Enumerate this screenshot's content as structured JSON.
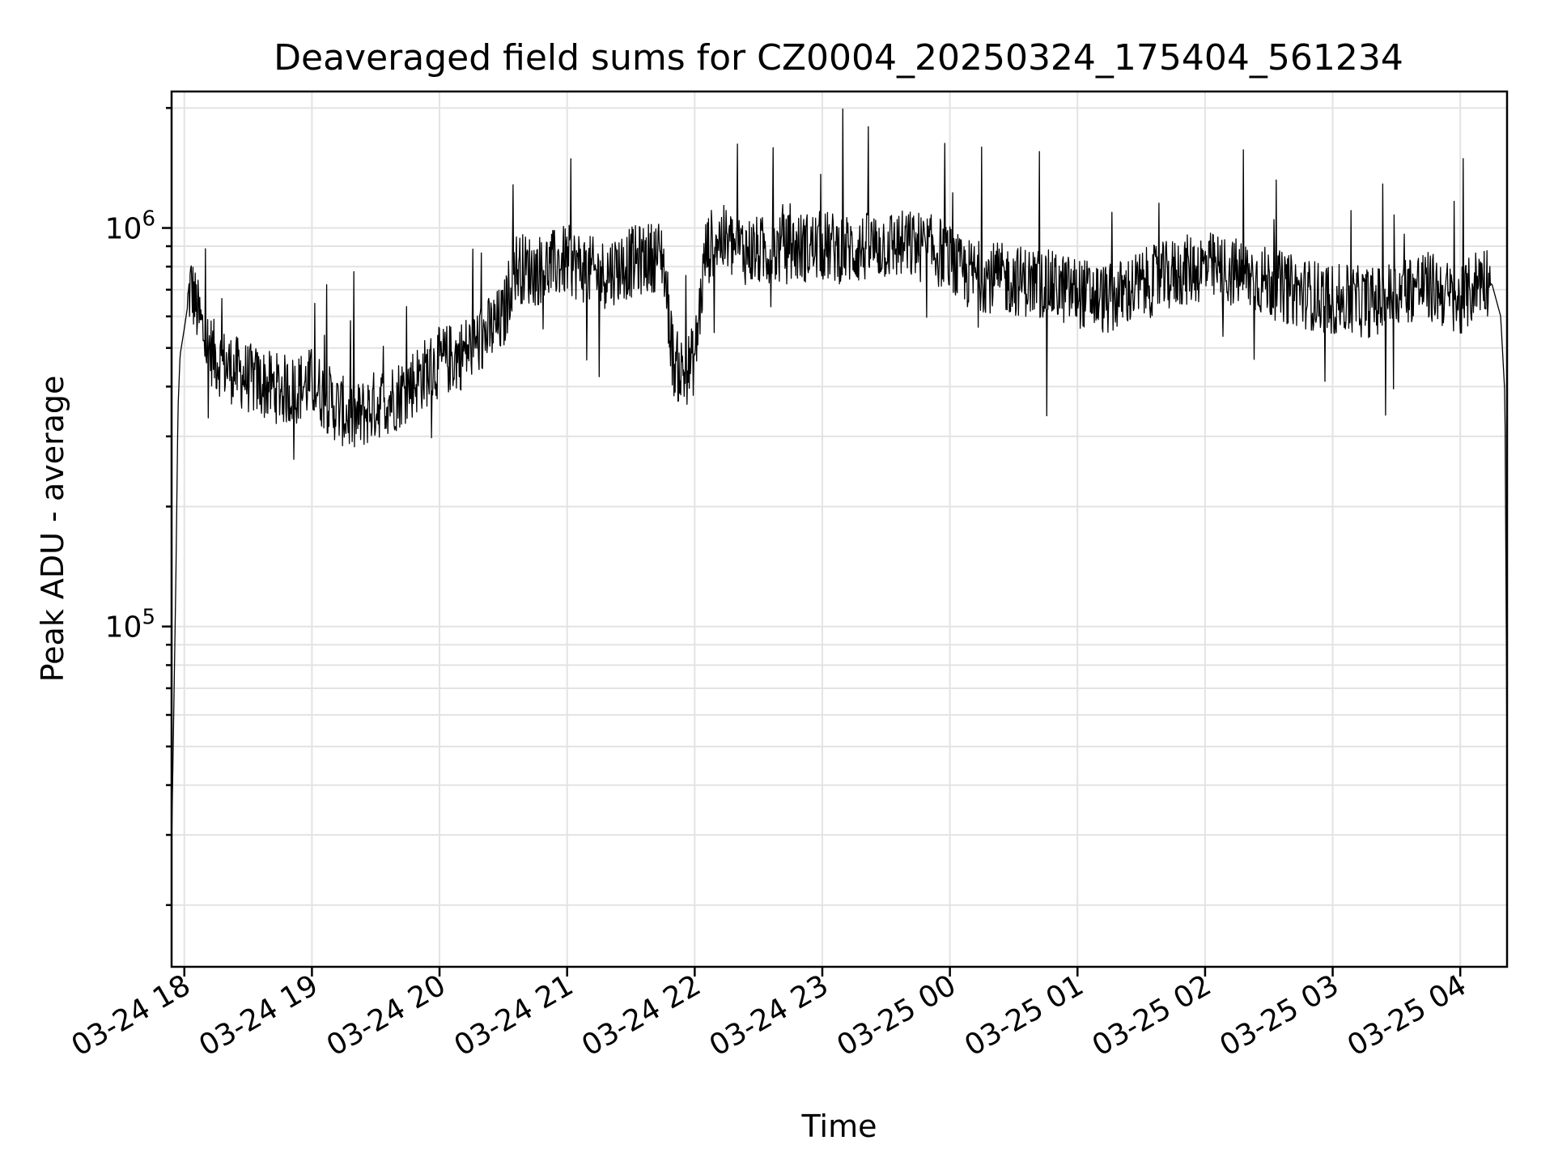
{
  "chart_data": {
    "type": "line",
    "title": "Deaveraged field sums for CZ0004_20250324_175404_561234",
    "xlabel": "Time",
    "ylabel": "Peak ADU - average",
    "y_scale": "log",
    "grid": true,
    "legend": "none",
    "xlim": [
      "2025-03-24 17:54",
      "2025-03-25 04:22"
    ],
    "ylim": [
      14000,
      2200000
    ],
    "x_tick_labels": [
      "03-24 18",
      "03-24 19",
      "03-24 20",
      "03-24 21",
      "03-24 22",
      "03-24 23",
      "03-25 00",
      "03-25 01",
      "03-25 02",
      "03-25 03",
      "03-25 04"
    ],
    "y_tick_labels": [
      {
        "base": "10",
        "exp": "5",
        "value": 100000
      },
      {
        "base": "10",
        "exp": "6",
        "value": 1000000
      }
    ],
    "series": [
      {
        "color": "#000000",
        "x": [
          "2025-03-24 17:54",
          "2025-03-24 17:55",
          "2025-03-24 17:56",
          "2025-03-24 17:57",
          "2025-03-24 17:58",
          "2025-03-24 18:00",
          "2025-03-24 18:03",
          "2025-03-24 18:06",
          "2025-03-24 18:10",
          "2025-03-24 18:15",
          "2025-03-24 18:20",
          "2025-03-24 18:30",
          "2025-03-24 18:40",
          "2025-03-24 18:50",
          "2025-03-24 19:00",
          "2025-03-24 19:10",
          "2025-03-24 19:20",
          "2025-03-24 19:30",
          "2025-03-24 19:40",
          "2025-03-24 19:50",
          "2025-03-24 20:00",
          "2025-03-24 20:10",
          "2025-03-24 20:20",
          "2025-03-24 20:30",
          "2025-03-24 20:35",
          "2025-03-24 20:45",
          "2025-03-24 21:00",
          "2025-03-24 21:15",
          "2025-03-24 21:30",
          "2025-03-24 21:45",
          "2025-03-24 21:50",
          "2025-03-24 21:55",
          "2025-03-24 22:00",
          "2025-03-24 22:05",
          "2025-03-24 22:10",
          "2025-03-24 22:20",
          "2025-03-24 22:30",
          "2025-03-24 22:45",
          "2025-03-24 23:00",
          "2025-03-24 23:15",
          "2025-03-24 23:30",
          "2025-03-24 23:45",
          "2025-03-24 23:58",
          "2025-03-25 00:05",
          "2025-03-25 00:20",
          "2025-03-25 00:40",
          "2025-03-25 01:00",
          "2025-03-25 01:15",
          "2025-03-25 01:30",
          "2025-03-25 01:50",
          "2025-03-25 02:00",
          "2025-03-25 02:20",
          "2025-03-25 02:40",
          "2025-03-25 03:00",
          "2025-03-25 03:20",
          "2025-03-25 03:40",
          "2025-03-25 03:50",
          "2025-03-25 04:00",
          "2025-03-25 04:10",
          "2025-03-25 04:15",
          "2025-03-25 04:19",
          "2025-03-25 04:21",
          "2025-03-25 04:22"
        ],
        "y": [
          28000,
          60000,
          130000,
          350000,
          480000,
          560000,
          720000,
          620000,
          520000,
          470000,
          450000,
          420000,
          400000,
          390000,
          410000,
          360000,
          330000,
          360000,
          380000,
          420000,
          460000,
          480000,
          530000,
          590000,
          800000,
          780000,
          830000,
          760000,
          820000,
          860000,
          460000,
          430000,
          470000,
          860000,
          950000,
          890000,
          870000,
          890000,
          900000,
          880000,
          910000,
          900000,
          860000,
          770000,
          750000,
          730000,
          690000,
          660000,
          720000,
          780000,
          800000,
          760000,
          700000,
          660000,
          650000,
          720000,
          700000,
          640000,
          760000,
          720000,
          600000,
          380000,
          45000
        ]
      }
    ]
  }
}
